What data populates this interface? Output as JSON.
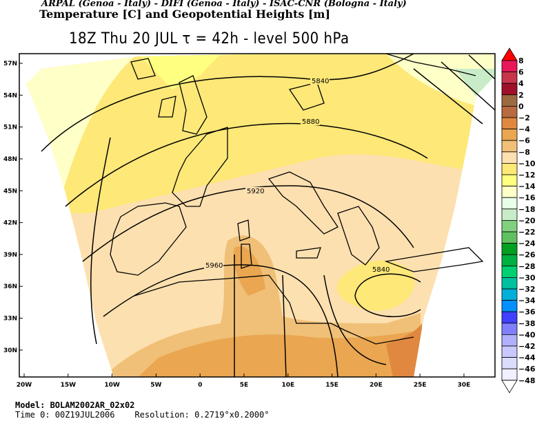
{
  "header": {
    "institutions": "ARPAL (Genoa - Italy)  -  DIFI (Genoa - Italy)  -  ISAC-CNR (Bologna - Italy)",
    "title": "Temperature [C] and Geopotential Heights [m]",
    "subtitle": "18Z Thu 20 JUL  τ = 42h  -  level 500 hPa"
  },
  "footer": {
    "model": "Model: BOLAM2002AR_02x02",
    "time0": "Time 0: 00Z19JUL2006",
    "resolution": "Resolution: 0.2719°x0.2000°"
  },
  "chart_data": {
    "type": "heatmap",
    "title": "Temperature [C] and Geopotential Heights [m]",
    "level": "500 hPa",
    "x_ticks": [
      "20W",
      "15W",
      "10W",
      "5W",
      "0",
      "5E",
      "10E",
      "15E",
      "20E",
      "25E",
      "30E"
    ],
    "x_values": [
      -20,
      -15,
      -10,
      -5,
      0,
      5,
      10,
      15,
      20,
      25,
      30
    ],
    "y_ticks": [
      "57N",
      "54N",
      "51N",
      "48N",
      "45N",
      "42N",
      "39N",
      "36N",
      "33N",
      "30N"
    ],
    "y_values": [
      57,
      54,
      51,
      48,
      45,
      42,
      39,
      36,
      33,
      30
    ],
    "colorbar": {
      "labels": [
        "8",
        "6",
        "4",
        "2",
        "0",
        "-2",
        "-4",
        "-6",
        "-8",
        "-10",
        "-12",
        "-14",
        "-16",
        "-18",
        "-20",
        "-22",
        "-24",
        "-26",
        "-28",
        "-30",
        "-32",
        "-34",
        "-36",
        "-38",
        "-40",
        "-42",
        "-44",
        "-46",
        "-48"
      ],
      "colors": [
        "#e8195a",
        "#c8364b",
        "#a0102a",
        "#9c6a40",
        "#b86a40",
        "#e08840",
        "#eaa650",
        "#f0c078",
        "#fde0b0",
        "#fde878",
        "#ffff80",
        "#ffffc8",
        "#e8ffe8",
        "#c8ecc8",
        "#80d080",
        "#60c060",
        "#00a020",
        "#00b040",
        "#00d070",
        "#00c0a0",
        "#00b0d8",
        "#0090ff",
        "#4040ff",
        "#8080ff",
        "#b0b0ff",
        "#c8c8ff",
        "#dcdcff",
        "#f0f0ff"
      ],
      "over_color": "#ff0000",
      "under_color": "#ffffff"
    },
    "contour_labels": [
      "5840",
      "5880",
      "5920",
      "5960",
      "5840"
    ]
  }
}
